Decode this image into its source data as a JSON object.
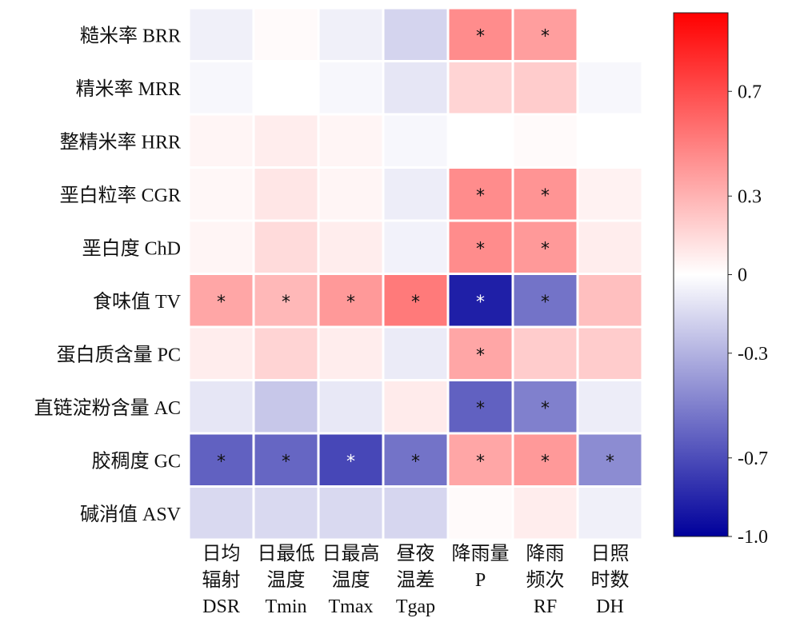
{
  "chart_data": {
    "type": "heatmap",
    "rows": [
      "糙米率 BRR",
      "精米率 MRR",
      "整精米率 HRR",
      "垩白粒率 CGR",
      "垩白度 ChD",
      "食味值 TV",
      "蛋白质含量 PC",
      "直链淀粉含量 AC",
      "胶稠度 GC",
      "碱消值 ASV"
    ],
    "columns": [
      [
        "日均",
        "辐射",
        "DSR"
      ],
      [
        "日最低",
        "温度",
        "Tmin"
      ],
      [
        "日最高",
        "温度",
        "Tmax"
      ],
      [
        "昼夜",
        "温差",
        "Tgap"
      ],
      [
        "降雨量",
        "P",
        ""
      ],
      [
        "降雨",
        "频次",
        "RF"
      ],
      [
        "日照",
        "时数",
        "DH"
      ]
    ],
    "values": [
      [
        -0.06,
        0.02,
        -0.06,
        -0.17,
        0.45,
        0.38,
        null
      ],
      [
        -0.03,
        0.0,
        -0.03,
        -0.1,
        0.17,
        0.2,
        -0.03
      ],
      [
        0.04,
        0.07,
        0.04,
        -0.03,
        0.0,
        0.02,
        0.0
      ],
      [
        0.03,
        0.1,
        0.04,
        -0.07,
        0.45,
        0.42,
        0.05
      ],
      [
        0.04,
        0.14,
        0.07,
        -0.05,
        0.45,
        0.4,
        0.07
      ],
      [
        0.35,
        0.28,
        0.4,
        0.52,
        -0.88,
        -0.55,
        0.25
      ],
      [
        0.07,
        0.17,
        0.07,
        -0.08,
        0.35,
        0.2,
        0.2
      ],
      [
        -0.1,
        -0.22,
        -0.09,
        0.08,
        -0.62,
        -0.5,
        -0.07
      ],
      [
        -0.62,
        -0.6,
        -0.72,
        -0.55,
        0.35,
        0.4,
        -0.45
      ],
      [
        -0.15,
        -0.15,
        -0.15,
        -0.16,
        0.02,
        0.07,
        -0.06
      ]
    ],
    "significant": [
      [
        false,
        false,
        false,
        false,
        true,
        true,
        false
      ],
      [
        false,
        false,
        false,
        false,
        false,
        false,
        false
      ],
      [
        false,
        false,
        false,
        false,
        false,
        false,
        false
      ],
      [
        false,
        false,
        false,
        false,
        true,
        true,
        false
      ],
      [
        false,
        false,
        false,
        false,
        true,
        true,
        false
      ],
      [
        true,
        true,
        true,
        true,
        true,
        true,
        false
      ],
      [
        false,
        false,
        false,
        false,
        true,
        false,
        false
      ],
      [
        false,
        false,
        false,
        false,
        true,
        true,
        false
      ],
      [
        true,
        true,
        true,
        true,
        true,
        true,
        true
      ],
      [
        false,
        false,
        false,
        false,
        false,
        false,
        false
      ]
    ],
    "significance_mark": "*",
    "colorbar": {
      "min": -1.0,
      "max": 1.0,
      "ticks": [
        0.7,
        0.3,
        0,
        -0.3,
        -0.7,
        -1.0
      ],
      "tick_labels": [
        "0.7",
        "0.3",
        "0",
        "-0.3",
        "-0.7",
        "-1.0"
      ],
      "colors": {
        "negative": "#00009b",
        "zero": "#ffffff",
        "positive": "#ff0000"
      }
    }
  }
}
